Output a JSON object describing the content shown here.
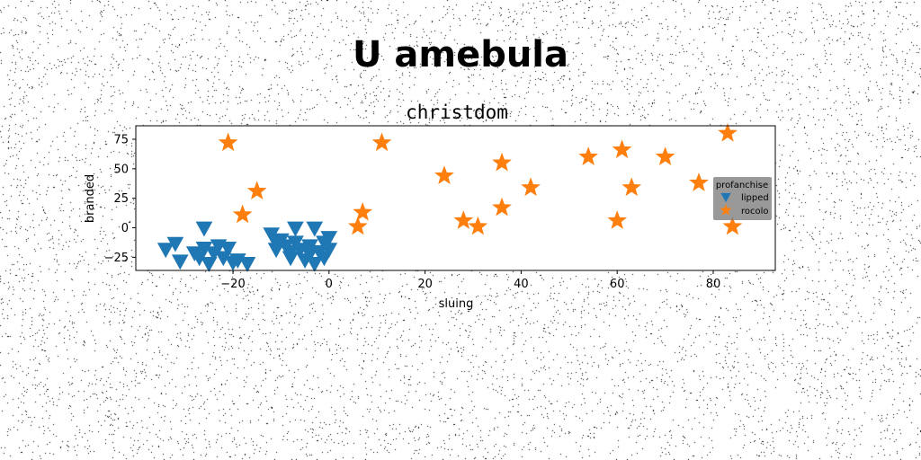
{
  "figure": {
    "title": "U amebula"
  },
  "chart_data": {
    "type": "scatter",
    "title": "christdom",
    "xlabel": "sluing",
    "ylabel": "branded",
    "xlim": [
      -40,
      93
    ],
    "ylim": [
      -37,
      88
    ],
    "xticks": [
      -20,
      0,
      20,
      40,
      60,
      80
    ],
    "xtick_labels": [
      "−20",
      "0",
      "20",
      "40",
      "60",
      "80"
    ],
    "yticks": [
      -25,
      0,
      25,
      50,
      75
    ],
    "ytick_labels": [
      "−25",
      "0",
      "25",
      "50",
      "75"
    ],
    "grid": false,
    "legend": {
      "title": "profanchise",
      "placement": "right"
    },
    "series": [
      {
        "name": "lipped",
        "marker": "triangle-down",
        "color": "#1f77b4",
        "points": [
          {
            "x": -34,
            "y": -18
          },
          {
            "x": -32,
            "y": -13
          },
          {
            "x": -31,
            "y": -28
          },
          {
            "x": -28,
            "y": -21
          },
          {
            "x": -27,
            "y": -25
          },
          {
            "x": -26,
            "y": -17
          },
          {
            "x": -26,
            "y": 0
          },
          {
            "x": -25,
            "y": -30
          },
          {
            "x": -24,
            "y": -21
          },
          {
            "x": -23,
            "y": -15
          },
          {
            "x": -22,
            "y": -25
          },
          {
            "x": -21,
            "y": -17
          },
          {
            "x": -20,
            "y": -29
          },
          {
            "x": -19,
            "y": -27
          },
          {
            "x": -17,
            "y": -30
          },
          {
            "x": -12,
            "y": -5
          },
          {
            "x": -11,
            "y": -12
          },
          {
            "x": -11,
            "y": -18
          },
          {
            "x": -10,
            "y": -10
          },
          {
            "x": -9,
            "y": -15
          },
          {
            "x": -8,
            "y": -20
          },
          {
            "x": -8,
            "y": -25
          },
          {
            "x": -7,
            "y": -12
          },
          {
            "x": -7,
            "y": 0
          },
          {
            "x": -6,
            "y": -18
          },
          {
            "x": -5,
            "y": -27
          },
          {
            "x": -4,
            "y": -22
          },
          {
            "x": -4,
            "y": -15
          },
          {
            "x": -3,
            "y": 0
          },
          {
            "x": -3,
            "y": -30
          },
          {
            "x": -2,
            "y": -20
          },
          {
            "x": -1,
            "y": -25
          },
          {
            "x": -1,
            "y": -12
          },
          {
            "x": 0,
            "y": -8
          },
          {
            "x": 0,
            "y": -18
          }
        ]
      },
      {
        "name": "rocolo",
        "marker": "star",
        "color": "#ff7f0e",
        "points": [
          {
            "x": -21,
            "y": 72
          },
          {
            "x": -18,
            "y": 11
          },
          {
            "x": -15,
            "y": 31
          },
          {
            "x": 6,
            "y": 1
          },
          {
            "x": 7,
            "y": 13
          },
          {
            "x": 11,
            "y": 72
          },
          {
            "x": 24,
            "y": 44
          },
          {
            "x": 28,
            "y": 6
          },
          {
            "x": 31,
            "y": 1
          },
          {
            "x": 36,
            "y": 55
          },
          {
            "x": 36,
            "y": 17
          },
          {
            "x": 42,
            "y": 34
          },
          {
            "x": 54,
            "y": 60
          },
          {
            "x": 60,
            "y": 6
          },
          {
            "x": 61,
            "y": 66
          },
          {
            "x": 63,
            "y": 34
          },
          {
            "x": 70,
            "y": 60
          },
          {
            "x": 77,
            "y": 38
          },
          {
            "x": 83,
            "y": 80
          },
          {
            "x": 84,
            "y": 1
          }
        ]
      }
    ]
  }
}
